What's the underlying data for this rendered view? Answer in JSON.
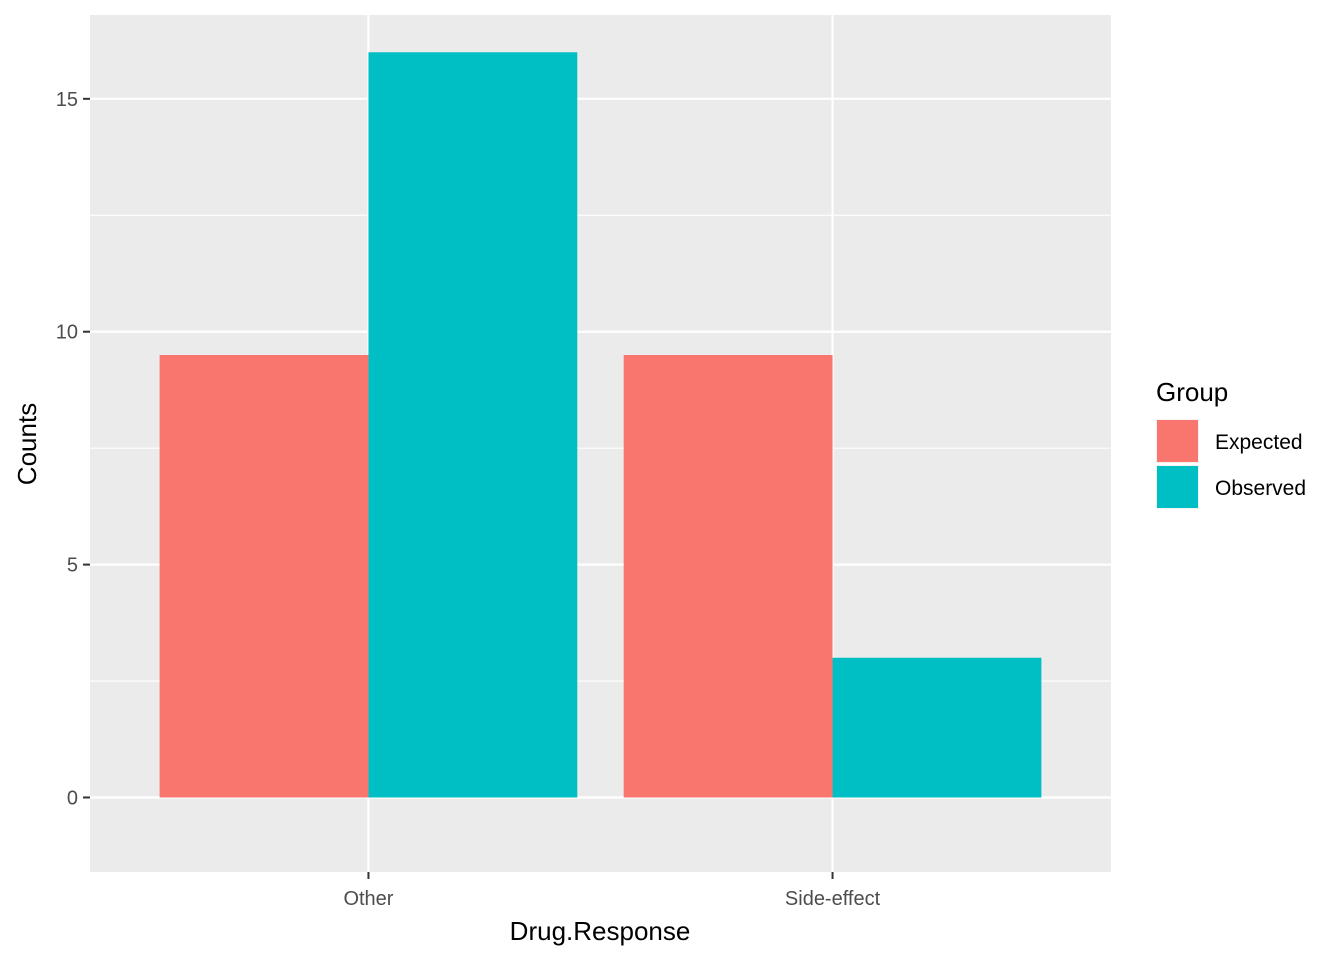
{
  "chart_data": {
    "type": "bar",
    "categories": [
      "Other",
      "Side-effect"
    ],
    "series": [
      {
        "name": "Expected",
        "values": [
          9.5,
          9.5
        ],
        "color": "#F8766D"
      },
      {
        "name": "Observed",
        "values": [
          16,
          3
        ],
        "color": "#00BFC4"
      }
    ],
    "xlabel": "Drug.Response",
    "ylabel": "Counts",
    "ylim": [
      -1.6,
      16.8
    ],
    "yticks": [
      0,
      5,
      10,
      15
    ],
    "ytick_labels": [
      "0",
      "5",
      "10",
      "15"
    ],
    "legend_title": "Group",
    "legend_position": "right",
    "grid": true,
    "panel_background": "#EBEBEB"
  }
}
